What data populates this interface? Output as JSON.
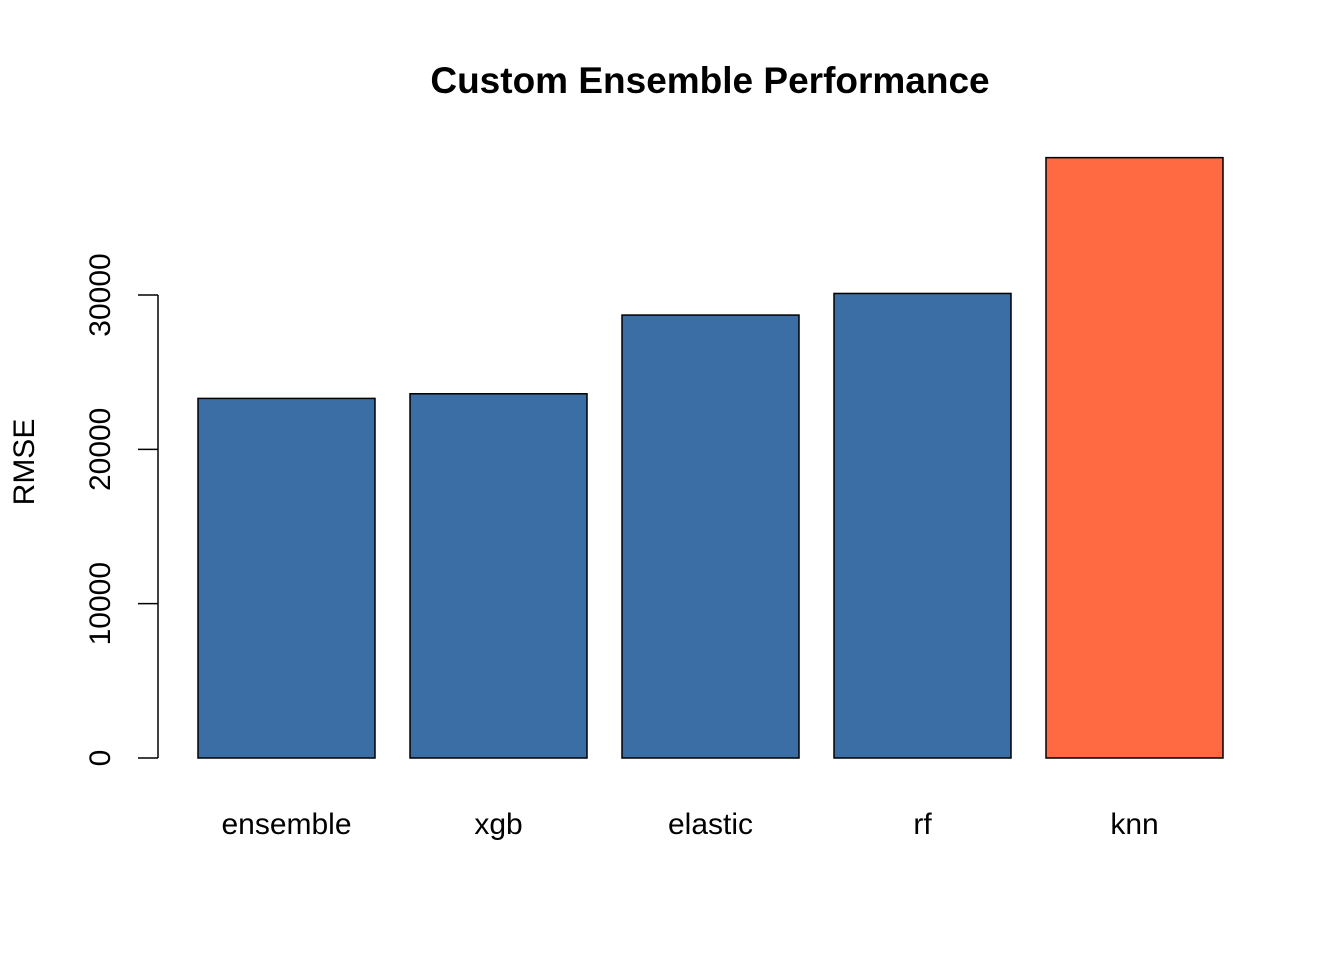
{
  "chart_data": {
    "type": "bar",
    "title": "Custom Ensemble Performance",
    "xlabel": "",
    "ylabel": "RMSE",
    "categories": [
      "ensemble",
      "xgb",
      "elastic",
      "rf",
      "knn"
    ],
    "values": [
      23300,
      23600,
      28700,
      30100,
      38900
    ],
    "bar_colors": [
      "#3A6EA5",
      "#3A6EA5",
      "#3A6EA5",
      "#3A6EA5",
      "#FF6A42"
    ],
    "ylim": [
      0,
      40000
    ],
    "y_ticks": [
      0,
      10000,
      20000,
      30000
    ],
    "y_tick_labels": [
      "0",
      "10000",
      "20000",
      "30000"
    ],
    "grid": false,
    "legend": "none"
  }
}
